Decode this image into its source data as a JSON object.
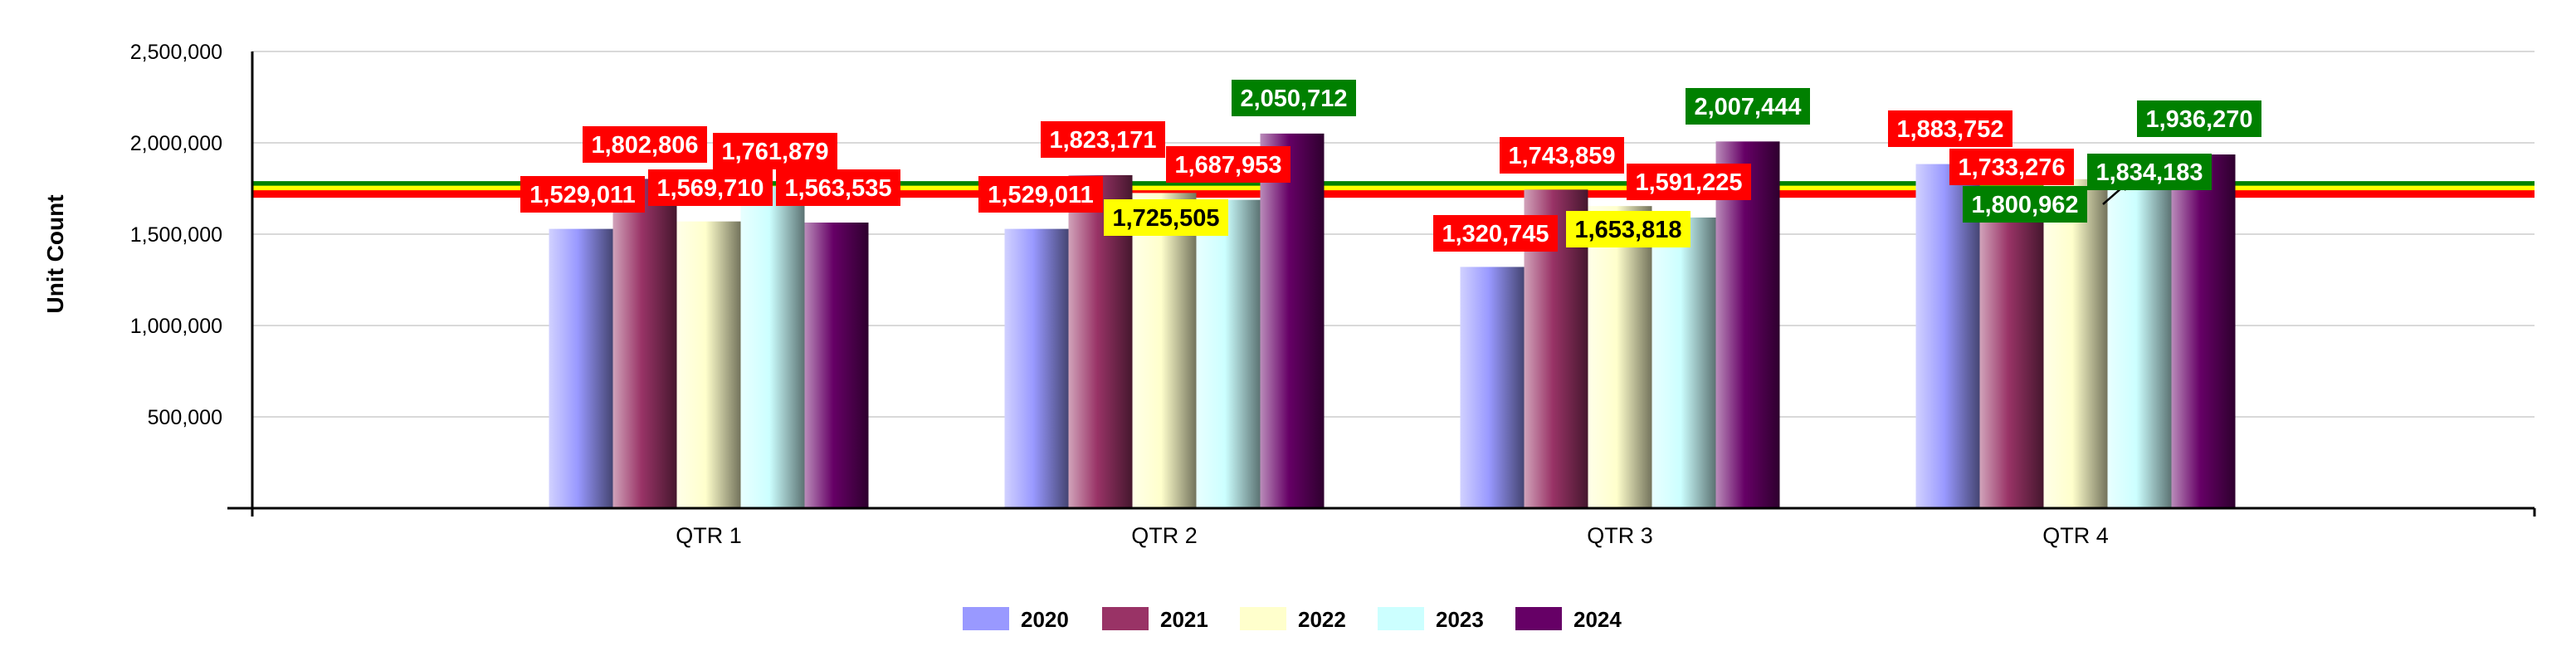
{
  "chart_data": {
    "type": "bar",
    "title": "",
    "xlabel": "",
    "ylabel": "Unit Count",
    "ylim": [
      0,
      2500000
    ],
    "yticks": [
      {
        "value": 500000,
        "label": "500,000"
      },
      {
        "value": 1000000,
        "label": "1,000,000"
      },
      {
        "value": 1500000,
        "label": "1,500,000"
      },
      {
        "value": 2000000,
        "label": "2,000,000"
      },
      {
        "value": 2500000,
        "label": "2,500,000"
      }
    ],
    "categories": [
      "QTR 1",
      "QTR 2",
      "QTR 3",
      "QTR 4"
    ],
    "grid": true,
    "legend_position": "bottom",
    "series": [
      {
        "name": "2020",
        "values": [
          1529011,
          1529011,
          1320745,
          1883752
        ]
      },
      {
        "name": "2021",
        "values": [
          1802806,
          1823171,
          1743859,
          1733276
        ]
      },
      {
        "name": "2022",
        "values": [
          1569710,
          1725505,
          1653818,
          1800962
        ]
      },
      {
        "name": "2023",
        "values": [
          1761879,
          1687953,
          1591225,
          1834183
        ]
      },
      {
        "name": "2024",
        "values": [
          1563535,
          2050712,
          2007444,
          1936270
        ]
      }
    ],
    "data_labels": [
      [
        "1,529,011",
        "1,529,011",
        "1,320,745",
        "1,883,752"
      ],
      [
        "1,802,806",
        "1,823,171",
        "1,743,859",
        "1,733,276"
      ],
      [
        "1,569,710",
        "1,725,505",
        "1,653,818",
        "1,800,962"
      ],
      [
        "1,761,879",
        "1,687,953",
        "1,591,225",
        "1,834,183"
      ],
      [
        "1,563,535",
        "2,050,712",
        "2,007,444",
        "1,936,270"
      ]
    ],
    "reference_lines": [
      {
        "value": 1770000,
        "color": "#008000"
      },
      {
        "value": 1745000,
        "color": "#ffff00"
      },
      {
        "value": 1720000,
        "color": "#ff0000"
      }
    ]
  },
  "colors": {
    "series": [
      "#9999ff",
      "#993366",
      "#ffffcc",
      "#ccffff",
      "#660066"
    ],
    "label_red": "#ff0000",
    "label_yellow": "#ffff00",
    "label_green": "#008000"
  }
}
